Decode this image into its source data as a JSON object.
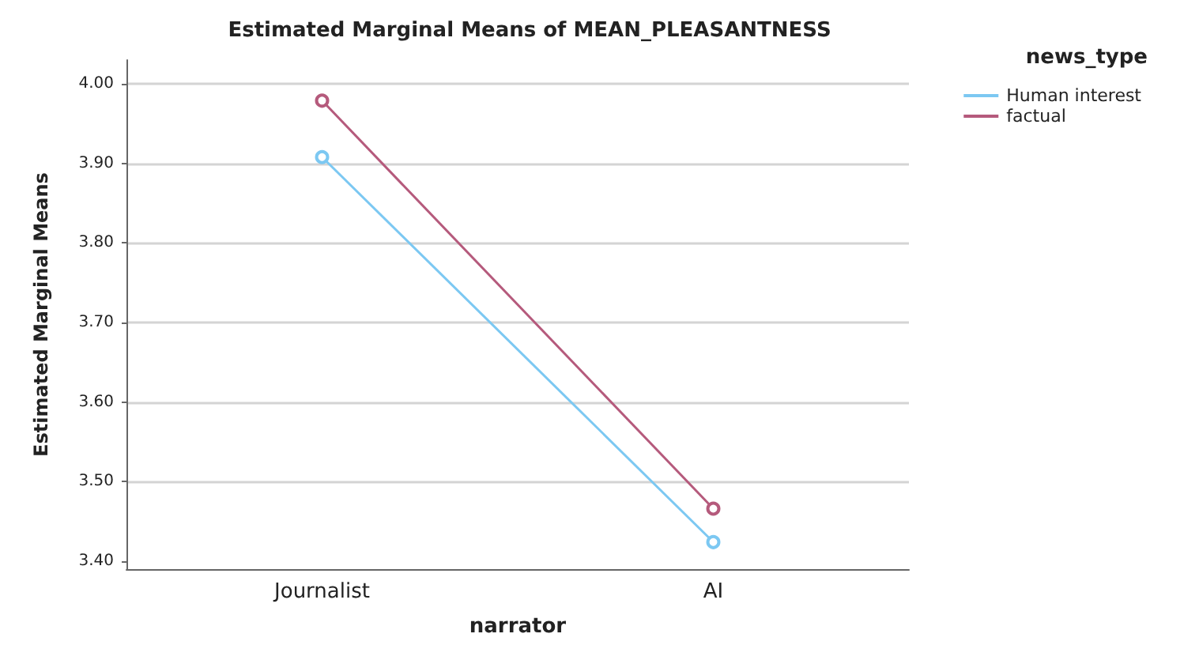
{
  "chart_data": {
    "type": "line",
    "title": "Estimated Marginal Means of MEAN_PLEASANTNESS",
    "xlabel": "narrator",
    "ylabel": "Estimated Marginal Means",
    "legend_title": "news_type",
    "categories": [
      "Journalist",
      "AI"
    ],
    "series": [
      {
        "name": "Human interest",
        "color": "#7cc8f2",
        "values": [
          3.908,
          3.424
        ]
      },
      {
        "name": "factual",
        "color": "#b55a7c",
        "values": [
          3.979,
          3.466
        ]
      }
    ],
    "ylim": [
      3.39,
      4.03
    ],
    "yticks": [
      {
        "value": 3.4,
        "label": "3.40"
      },
      {
        "value": 3.5,
        "label": "3.50"
      },
      {
        "value": 3.6,
        "label": "3.60"
      },
      {
        "value": 3.7,
        "label": "3.70"
      },
      {
        "value": 3.8,
        "label": "3.80"
      },
      {
        "value": 3.9,
        "label": "3.90"
      },
      {
        "value": 4,
        "label": "4.00"
      }
    ],
    "grid": "y",
    "legend": "top right",
    "marker": "circle",
    "line_style": "solid"
  }
}
